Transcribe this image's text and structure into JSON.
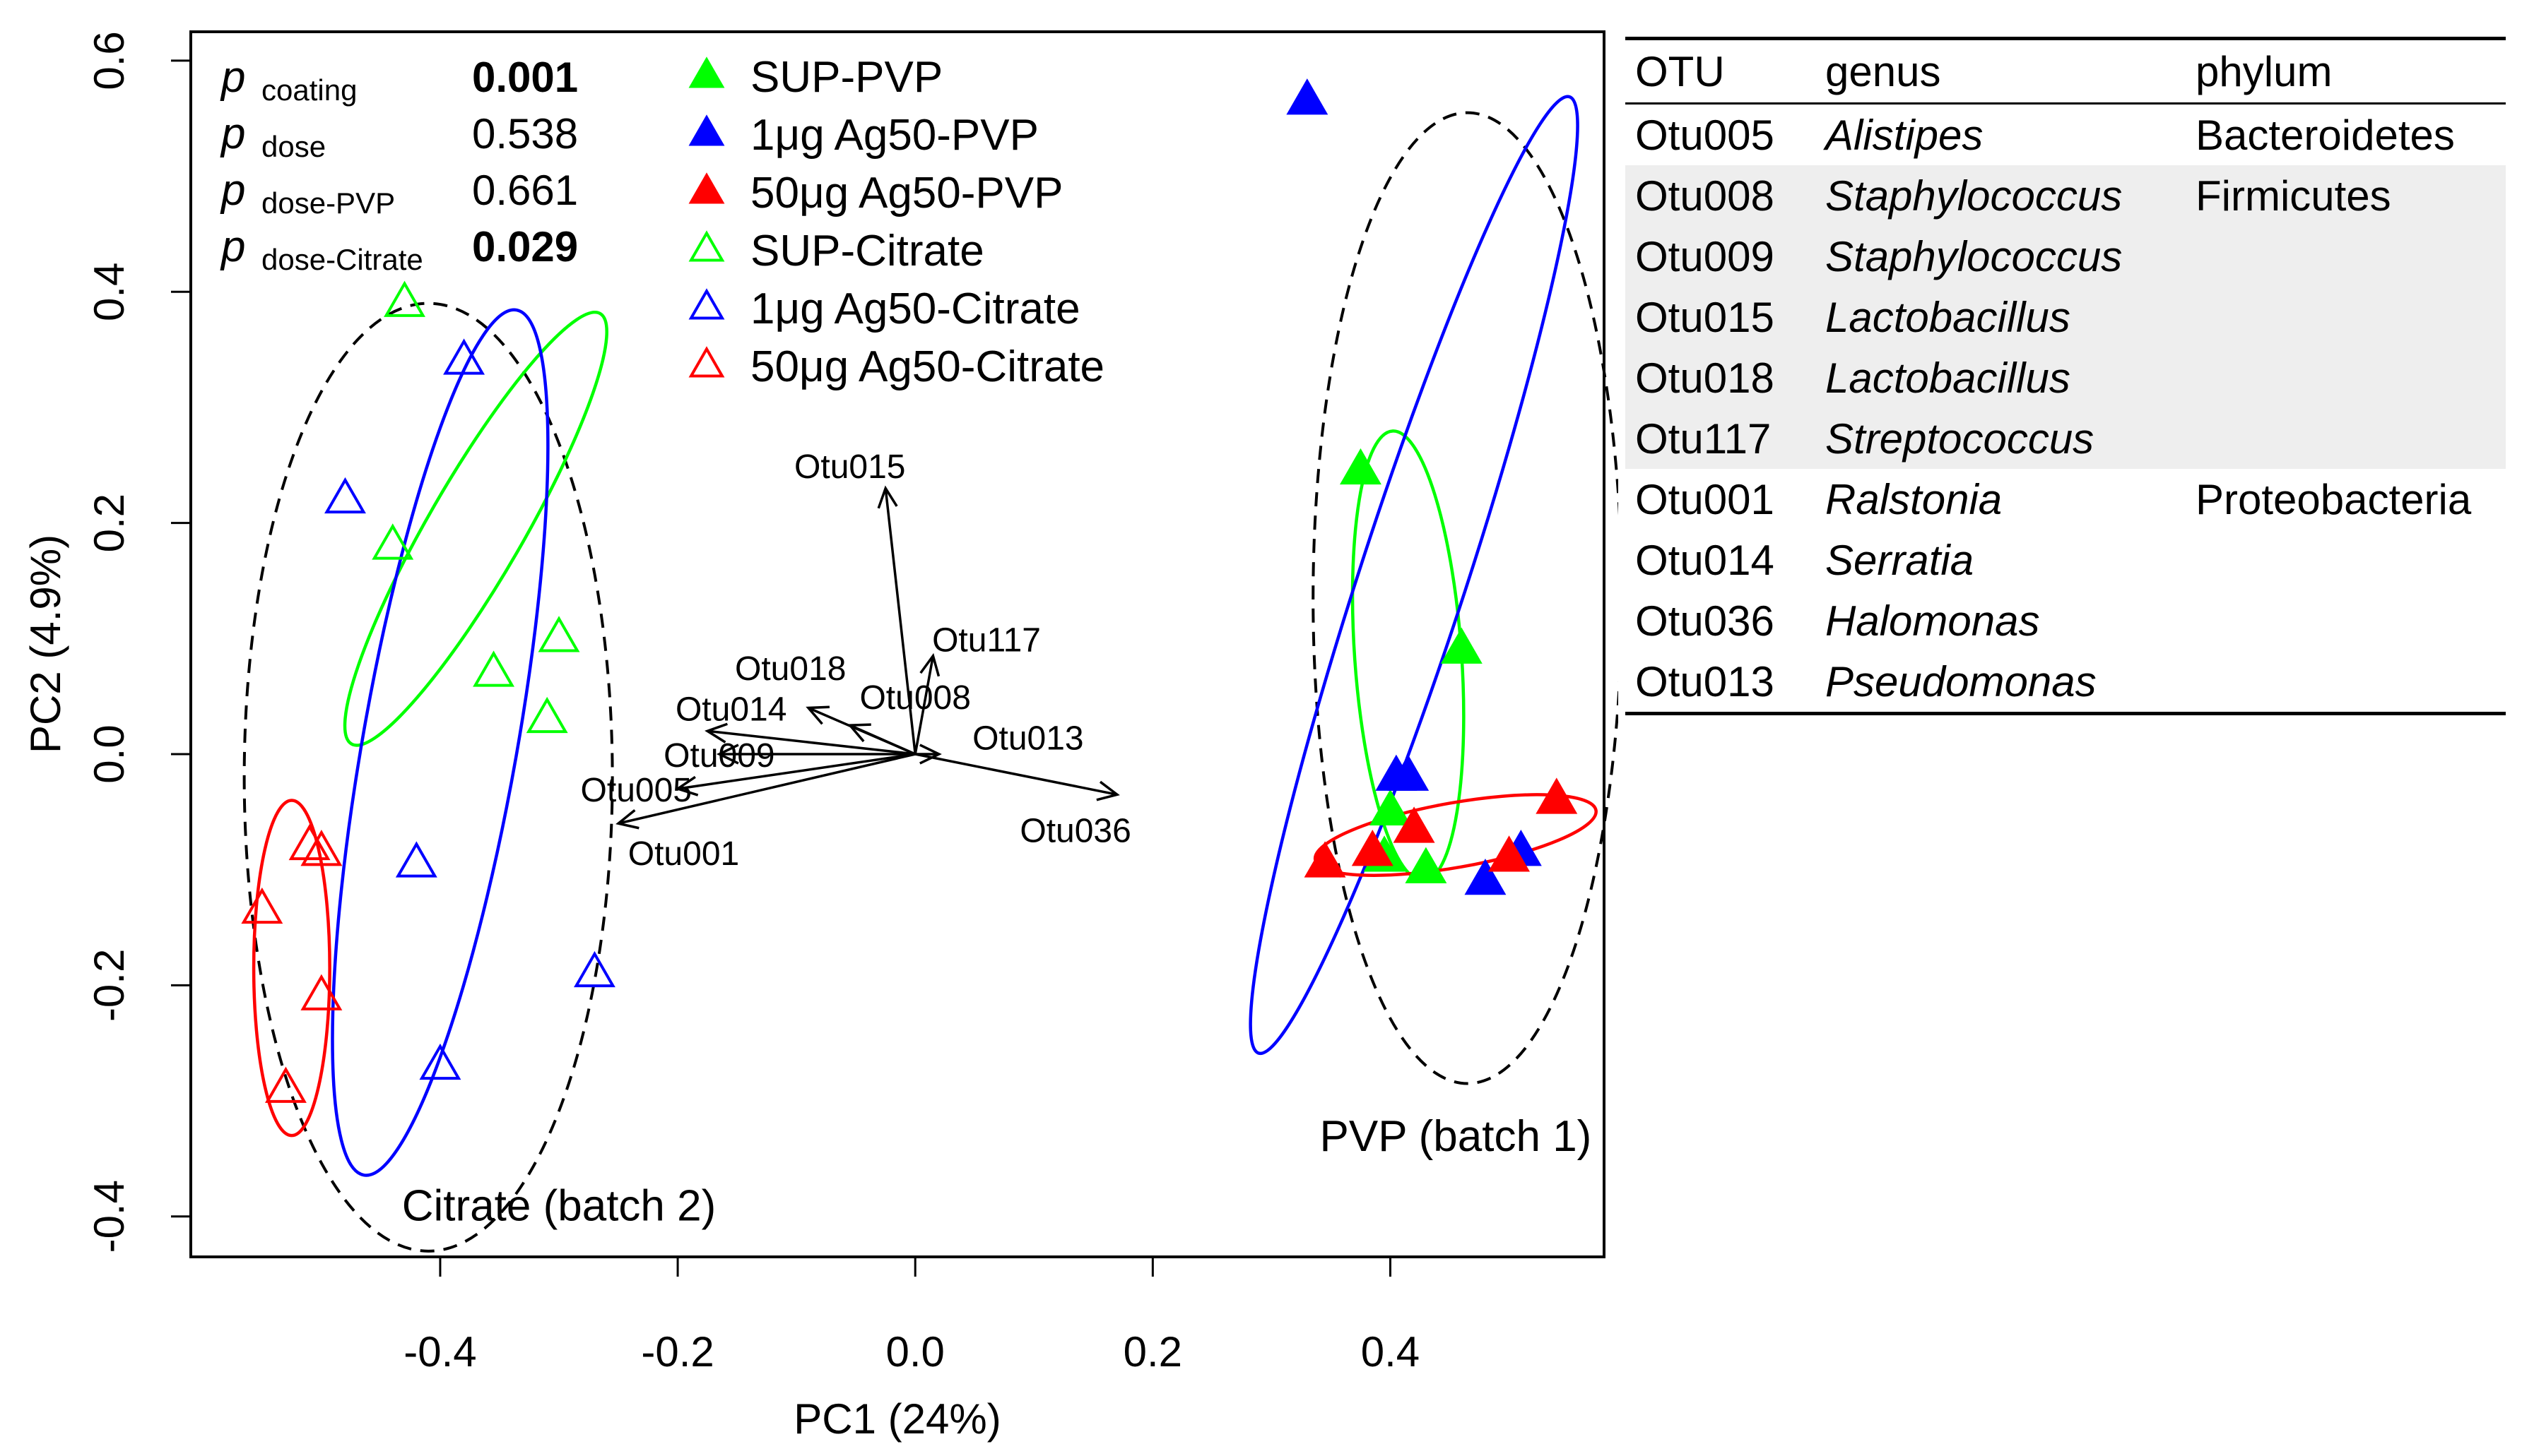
{
  "chart_data": {
    "type": "scatter",
    "xlabel": "PC1 (24%)",
    "ylabel": "PC2 (4.9%)",
    "xlim": [
      -0.61,
      0.58
    ],
    "ylim": [
      -0.435,
      0.625
    ],
    "xticks": [
      -0.4,
      -0.2,
      0.0,
      0.2,
      0.4
    ],
    "yticks": [
      -0.4,
      -0.2,
      0.0,
      0.2,
      0.4,
      0.6
    ],
    "xtick_labels": [
      "-0.4",
      "-0.2",
      "0.0",
      "0.2",
      "0.4"
    ],
    "ytick_labels": [
      "-0.4",
      "-0.2",
      "0.0",
      "0.2",
      "0.4",
      "0.6"
    ],
    "pvalues": [
      {
        "label": "p",
        "sub": "coating",
        "value": "0.001",
        "bold": true
      },
      {
        "label": "p",
        "sub": "dose",
        "value": "0.538",
        "bold": false
      },
      {
        "label": "p",
        "sub": "dose-PVP",
        "value": "0.661",
        "bold": false
      },
      {
        "label": "p",
        "sub": "dose-Citrate",
        "value": "0.029",
        "bold": true
      }
    ],
    "legend": [
      {
        "label": "SUP-PVP",
        "color": "#00ff00",
        "filled": true
      },
      {
        "label": "1μg Ag50-PVP",
        "color": "#0000ff",
        "filled": true
      },
      {
        "label": "50μg Ag50-PVP",
        "color": "#ff0000",
        "filled": true
      },
      {
        "label": "SUP-Citrate",
        "color": "#00ff00",
        "filled": false
      },
      {
        "label": "1μg Ag50-Citrate",
        "color": "#0000ff",
        "filled": false
      },
      {
        "label": "50μg Ag50-Citrate",
        "color": "#ff0000",
        "filled": false
      }
    ],
    "series": [
      {
        "name": "SUP-PVP",
        "color": "#00ff00",
        "filled": true,
        "points": [
          [
            0.375,
            0.245
          ],
          [
            0.46,
            0.09
          ],
          [
            0.4,
            -0.05
          ],
          [
            0.395,
            -0.09
          ],
          [
            0.43,
            -0.1
          ]
        ]
      },
      {
        "name": "1μg Ag50-PVP",
        "color": "#0000ff",
        "filled": true,
        "points": [
          [
            0.33,
            0.565
          ],
          [
            0.405,
            -0.02
          ],
          [
            0.415,
            -0.02
          ],
          [
            0.48,
            -0.11
          ],
          [
            0.51,
            -0.085
          ]
        ]
      },
      {
        "name": "50μg Ag50-PVP",
        "color": "#ff0000",
        "filled": true,
        "points": [
          [
            0.345,
            -0.095
          ],
          [
            0.385,
            -0.085
          ],
          [
            0.42,
            -0.065
          ],
          [
            0.5,
            -0.09
          ],
          [
            0.54,
            -0.04
          ]
        ]
      },
      {
        "name": "SUP-Citrate",
        "color": "#00ff00",
        "filled": false,
        "points": [
          [
            -0.43,
            0.39
          ],
          [
            -0.44,
            0.18
          ],
          [
            -0.355,
            0.07
          ],
          [
            -0.3,
            0.1
          ],
          [
            -0.31,
            0.03
          ]
        ]
      },
      {
        "name": "1μg Ag50-Citrate",
        "color": "#0000ff",
        "filled": false,
        "points": [
          [
            -0.38,
            0.34
          ],
          [
            -0.48,
            0.22
          ],
          [
            -0.42,
            -0.095
          ],
          [
            -0.27,
            -0.19
          ],
          [
            -0.4,
            -0.27
          ]
        ]
      },
      {
        "name": "50μg Ag50-Citrate",
        "color": "#ff0000",
        "filled": false,
        "points": [
          [
            -0.55,
            -0.135
          ],
          [
            -0.51,
            -0.08
          ],
          [
            -0.5,
            -0.085
          ],
          [
            -0.5,
            -0.21
          ],
          [
            -0.53,
            -0.29
          ]
        ]
      }
    ],
    "ellipses": [
      {
        "group": "Citrate (batch 2) overall",
        "style": "dashed",
        "color": "#000000",
        "center": [
          -0.41,
          -0.02
        ],
        "rx": 0.155,
        "ry": 0.41,
        "rot": 0
      },
      {
        "group": "PVP (batch 1) overall",
        "style": "dashed",
        "color": "#000000",
        "center": [
          0.465,
          0.135
        ],
        "rx": 0.13,
        "ry": 0.42,
        "rot": 0
      },
      {
        "group": "SUP-Citrate",
        "style": "solid",
        "color": "#00ff00",
        "center": [
          -0.37,
          0.195
        ],
        "rx": 0.04,
        "ry": 0.215,
        "rot": 30
      },
      {
        "group": "1μg Ag50-Citrate",
        "style": "solid",
        "color": "#0000ff",
        "center": [
          -0.4,
          0.01
        ],
        "rx": 0.065,
        "ry": 0.38,
        "rot": 10
      },
      {
        "group": "50μg Ag50-Citrate",
        "style": "solid",
        "color": "#ff0000",
        "center": [
          -0.525,
          -0.185
        ],
        "rx": 0.032,
        "ry": 0.145,
        "rot": 0
      },
      {
        "group": "SUP-PVP",
        "style": "solid",
        "color": "#00ff00",
        "center": [
          0.415,
          0.085
        ],
        "rx": 0.045,
        "ry": 0.195,
        "rot": -4
      },
      {
        "group": "1μg Ag50-PVP",
        "style": "solid",
        "color": "#0000ff",
        "center": [
          0.42,
          0.155
        ],
        "rx": 0.045,
        "ry": 0.435,
        "rot": 18
      },
      {
        "group": "50μg Ag50-PVP",
        "style": "solid",
        "color": "#ff0000",
        "center": [
          0.455,
          -0.07
        ],
        "rx": 0.12,
        "ry": 0.028,
        "rot": -10
      }
    ],
    "group_labels": [
      {
        "text": "Citrate (batch 2)",
        "x": -0.3,
        "y": -0.39
      },
      {
        "text": "PVP (batch 1)",
        "x": 0.455,
        "y": -0.33
      }
    ],
    "arrows": [
      {
        "name": "Otu015",
        "x": -0.025,
        "y": 0.23,
        "lx": -0.055,
        "ly": 0.25
      },
      {
        "name": "Otu117",
        "x": 0.015,
        "y": 0.085,
        "lx": 0.06,
        "ly": 0.1
      },
      {
        "name": "Otu018",
        "x": -0.09,
        "y": 0.04,
        "lx": -0.105,
        "ly": 0.075
      },
      {
        "name": "Otu008",
        "x": -0.055,
        "y": 0.025,
        "lx": 0.0,
        "ly": 0.05
      },
      {
        "name": "Otu014",
        "x": -0.175,
        "y": 0.02,
        "lx": -0.155,
        "ly": 0.04
      },
      {
        "name": "Otu009",
        "x": -0.165,
        "y": 0.0,
        "lx": -0.165,
        "ly": 0.0
      },
      {
        "name": "Otu013",
        "x": 0.02,
        "y": 0.0,
        "lx": 0.095,
        "ly": 0.015
      },
      {
        "name": "Otu005",
        "x": -0.2,
        "y": -0.03,
        "lx": -0.235,
        "ly": -0.03
      },
      {
        "name": "Otu036",
        "x": 0.17,
        "y": -0.035,
        "lx": 0.135,
        "ly": -0.065
      },
      {
        "name": "Otu001",
        "x": -0.25,
        "y": -0.06,
        "lx": -0.195,
        "ly": -0.085
      }
    ]
  },
  "table": {
    "headers": [
      "OTU",
      "genus",
      "phylum"
    ],
    "rows": [
      {
        "otu": "Otu005",
        "genus": "Alistipes",
        "phylum": "Bacteroidetes",
        "shaded": false
      },
      {
        "otu": "Otu008",
        "genus": "Staphylococcus",
        "phylum": "Firmicutes",
        "shaded": true
      },
      {
        "otu": "Otu009",
        "genus": "Staphylococcus",
        "phylum": "",
        "shaded": true
      },
      {
        "otu": "Otu015",
        "genus": "Lactobacillus",
        "phylum": "",
        "shaded": true
      },
      {
        "otu": "Otu018",
        "genus": "Lactobacillus",
        "phylum": "",
        "shaded": true
      },
      {
        "otu": "Otu117",
        "genus": "Streptococcus",
        "phylum": "",
        "shaded": true
      },
      {
        "otu": "Otu001",
        "genus": "Ralstonia",
        "phylum": "Proteobacteria",
        "shaded": false
      },
      {
        "otu": "Otu014",
        "genus": "Serratia",
        "phylum": "",
        "shaded": false
      },
      {
        "otu": "Otu036",
        "genus": "Halomonas",
        "phylum": "",
        "shaded": false
      },
      {
        "otu": "Otu013",
        "genus": "Pseudomonas",
        "phylum": "",
        "shaded": false
      }
    ]
  }
}
